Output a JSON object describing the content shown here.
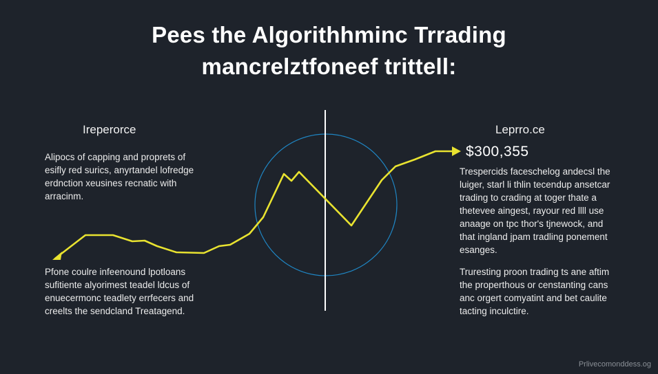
{
  "title": {
    "line1": "Pees the Algorithhminc Trrading",
    "line2": "mancrelztfoneef trittell:"
  },
  "left": {
    "heading": "Ireperorce",
    "top_lines": [
      "Alipocs of capping and proprets of",
      "esifly red surics, anyrtandel lofredge",
      "erdnction xeusines recnatic with",
      "arracinm."
    ],
    "bottom_lines": [
      "Pfone coulre infeenound lpotloans",
      "sufitiente alyorimest teadel ldcus of",
      "enuecermonc teadlety errfecers and",
      "creelts the sendcland Treatagend."
    ]
  },
  "right": {
    "heading": "Leprro.ce",
    "value": "$300,355",
    "top_lines": [
      "Trespercids faceschelog andecsl the",
      "luiger, starl li thlin tecendup ansetcar",
      "trading to crading at toger thate a",
      "thetevee aingest, rayour red llll use",
      "anaage on tpc thor's tjnewock, and",
      "that ingland jpam tradling ponement",
      "esanges."
    ],
    "bottom_lines": [
      "Truresting proon trading ts ane aftim",
      "the properthous or censtanting cans",
      "anc orgert comyatint and bet caulite",
      "tacting inculctire."
    ]
  },
  "watermark": "Prlivecomonddess.og",
  "colors": {
    "background": "#1e232b",
    "line": "#e9e330",
    "circle": "#1f86c4",
    "divider": "#ffffff"
  },
  "icons": {
    "line_start": "arrowhead-left-icon",
    "line_end": "arrowhead-right-icon"
  }
}
